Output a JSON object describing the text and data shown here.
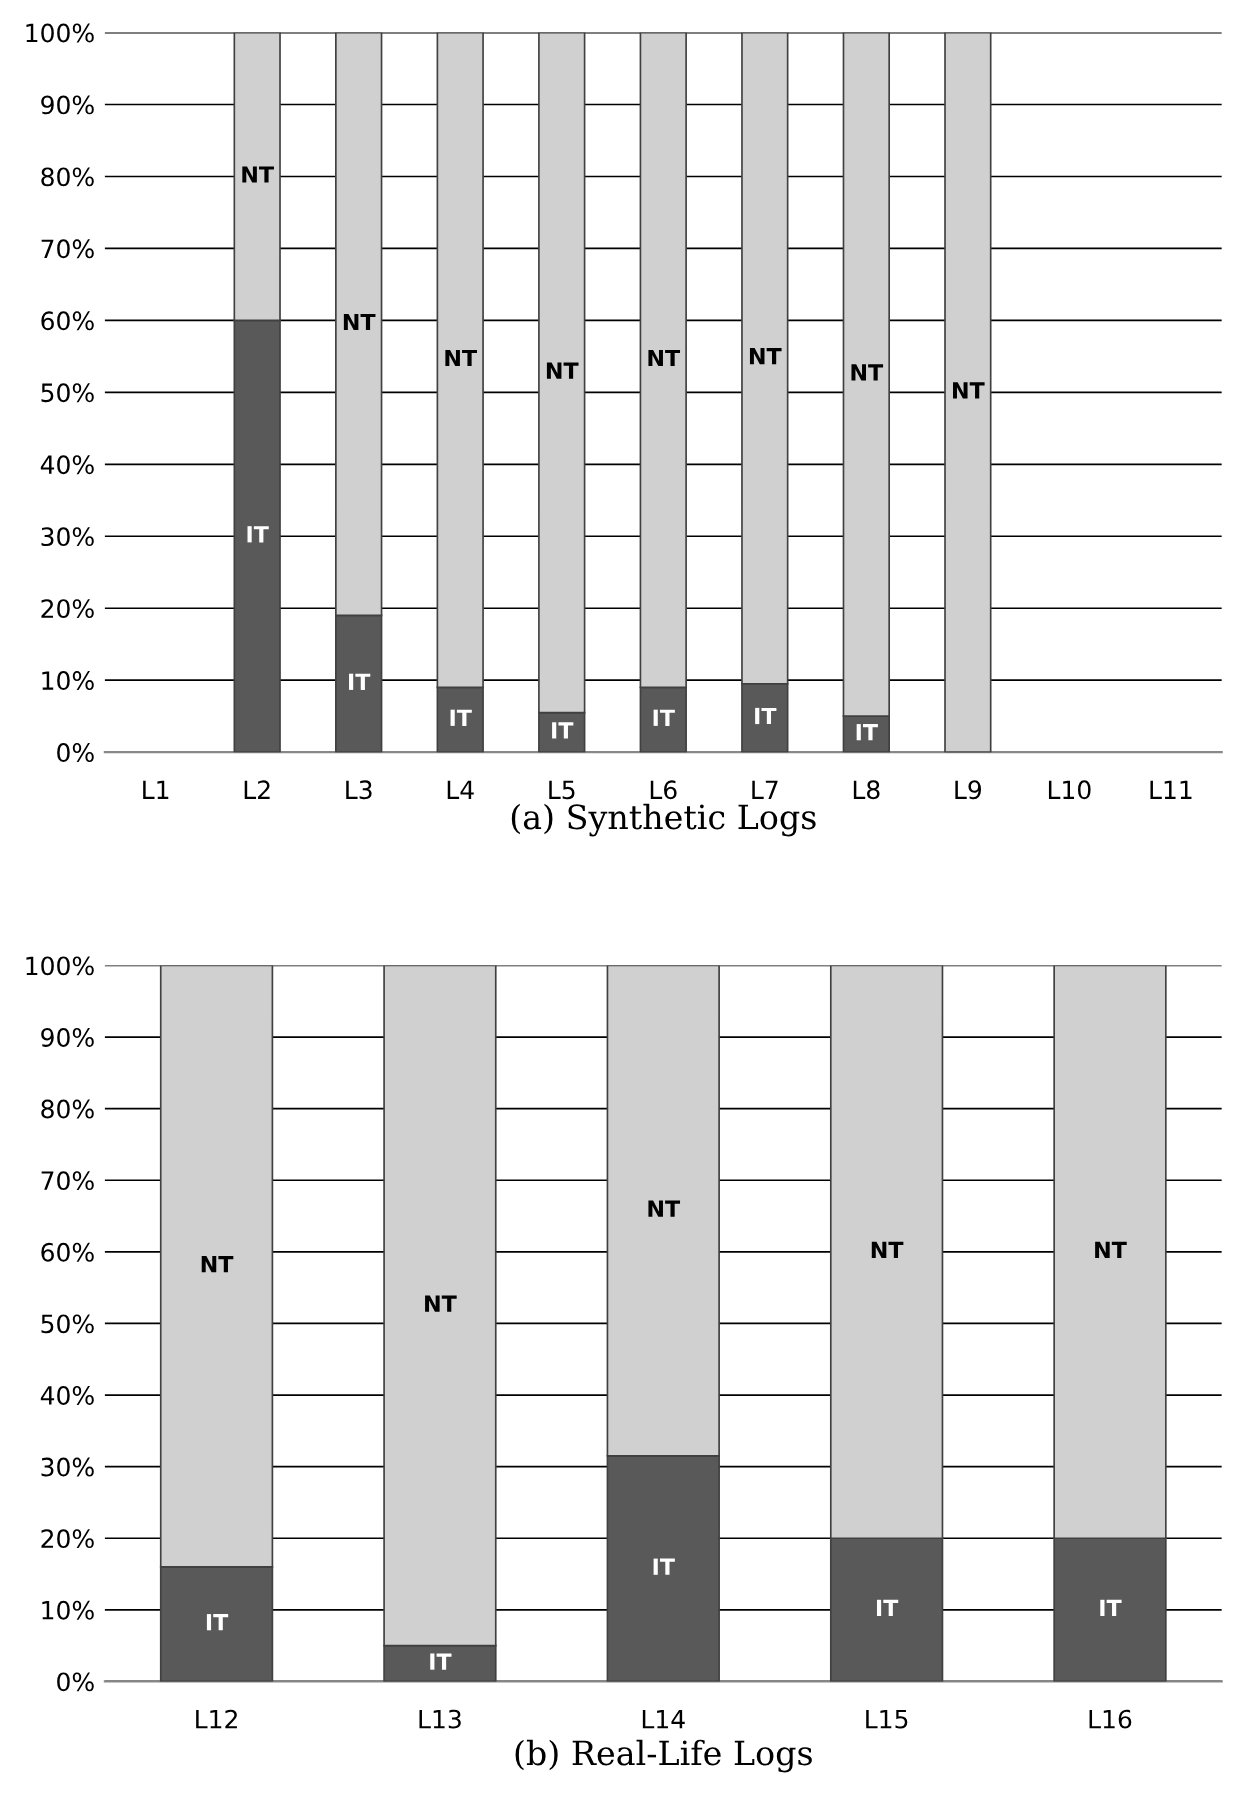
{
  "chart_data": [
    {
      "type": "bar",
      "title": "(a) Synthetic Logs",
      "stacked": true,
      "categories": [
        "L1",
        "L2",
        "L3",
        "L4",
        "L5",
        "L6",
        "L7",
        "L8",
        "L9",
        "L10",
        "L11"
      ],
      "series": [
        {
          "name": "IT",
          "color": "#595959",
          "values": [
            null,
            60,
            19,
            9,
            5.5,
            9,
            9.5,
            5,
            0,
            null,
            null
          ]
        },
        {
          "name": "NT",
          "color": "#d0d0d0",
          "values": [
            null,
            40,
            81,
            91,
            94.5,
            91,
            90.5,
            95,
            100,
            null,
            null
          ]
        }
      ],
      "ylim": [
        0,
        100
      ],
      "yticks": [
        {
          "value": 0,
          "label": "0%"
        },
        {
          "value": 10,
          "label": "10%"
        },
        {
          "value": 20,
          "label": "20%"
        },
        {
          "value": 30,
          "label": "30%"
        },
        {
          "value": 40,
          "label": "40%"
        },
        {
          "value": 50,
          "label": "50%"
        },
        {
          "value": 60,
          "label": "60%"
        },
        {
          "value": 70,
          "label": "70%"
        },
        {
          "value": 80,
          "label": "80%"
        },
        {
          "value": 90,
          "label": "90%"
        },
        {
          "value": 100,
          "label": "100%"
        }
      ],
      "grid": "y",
      "legend": false
    },
    {
      "type": "bar",
      "title": "(b) Real-Life Logs",
      "stacked": true,
      "categories": [
        "L12",
        "L13",
        "L14",
        "L15",
        "L16"
      ],
      "series": [
        {
          "name": "IT",
          "color": "#595959",
          "values": [
            16,
            5,
            31.5,
            20,
            20
          ]
        },
        {
          "name": "NT",
          "color": "#d0d0d0",
          "values": [
            84,
            95,
            68.5,
            80,
            80
          ]
        }
      ],
      "ylim": [
        0,
        100
      ],
      "yticks": [
        {
          "value": 0,
          "label": "0%"
        },
        {
          "value": 10,
          "label": "10%"
        },
        {
          "value": 20,
          "label": "20%"
        },
        {
          "value": 30,
          "label": "30%"
        },
        {
          "value": 40,
          "label": "40%"
        },
        {
          "value": 50,
          "label": "50%"
        },
        {
          "value": 60,
          "label": "60%"
        },
        {
          "value": 70,
          "label": "70%"
        },
        {
          "value": 80,
          "label": "80%"
        },
        {
          "value": 90,
          "label": "90%"
        },
        {
          "value": 100,
          "label": "100%"
        }
      ],
      "grid": "y",
      "legend": false
    }
  ]
}
